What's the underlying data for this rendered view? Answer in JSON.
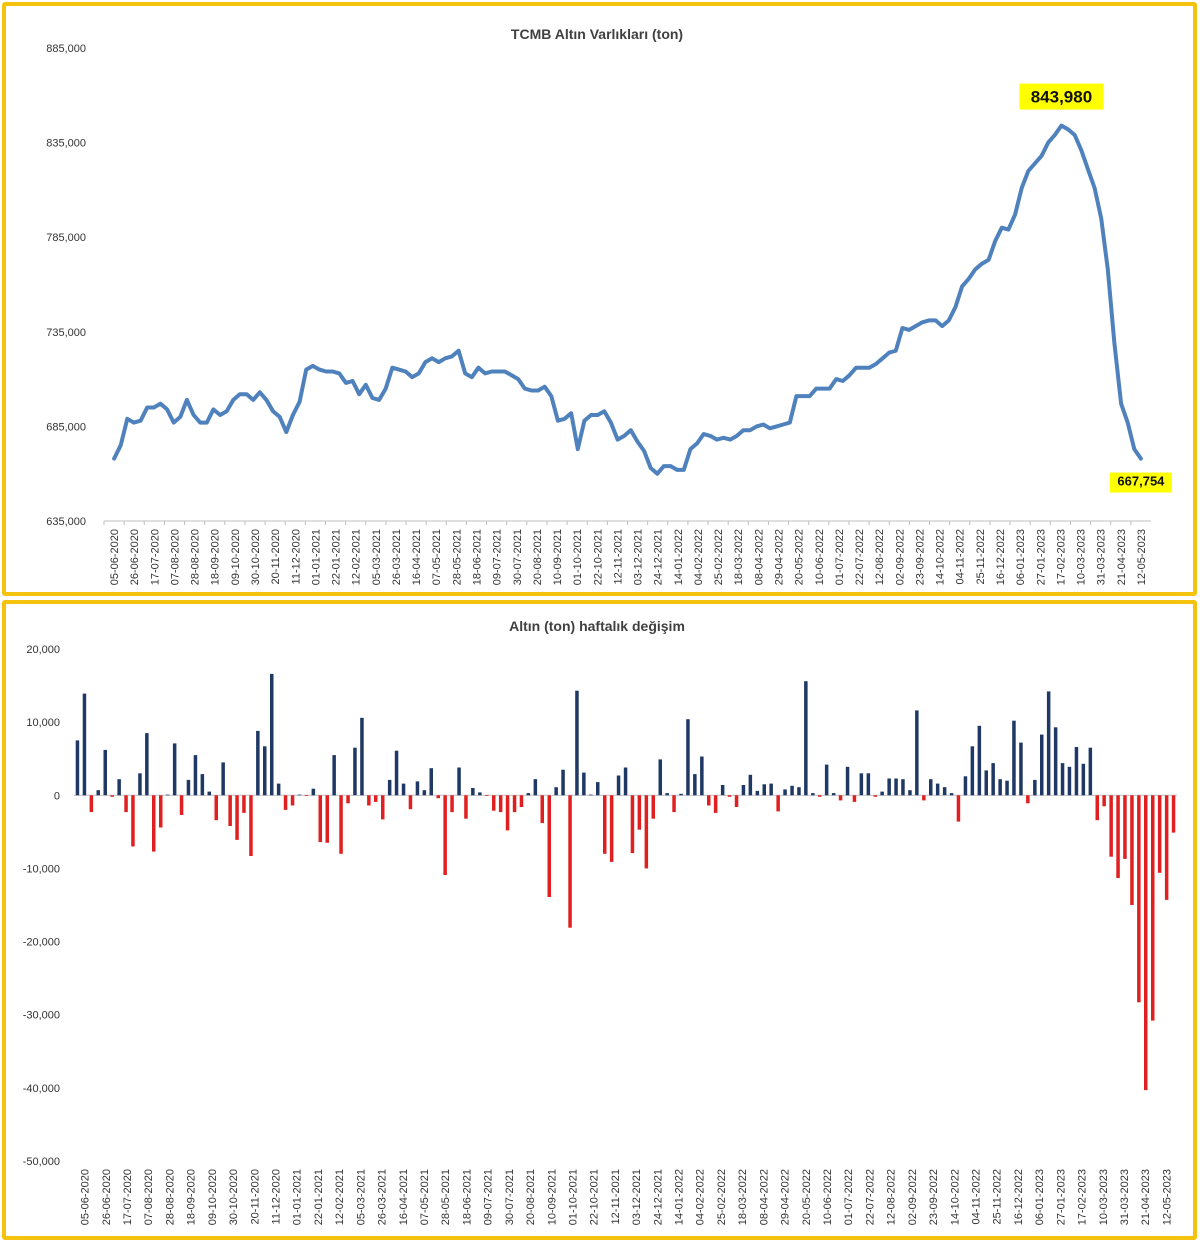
{
  "colors": {
    "frame": "#F5C20D",
    "line": "#4F81BD",
    "bar_positive": "#1F3864",
    "bar_negative": "#E02020",
    "annotation_bg": "#FFFF00",
    "grid": "#D9D9D9"
  },
  "chart_data": [
    {
      "type": "line",
      "title": "TCMB Altın Varlıkları (ton)",
      "xlabel": "",
      "ylabel": "",
      "ylim": [
        635000,
        885000
      ],
      "yticks": [
        635000,
        685000,
        735000,
        785000,
        835000,
        885000
      ],
      "ytick_labels": [
        "635,000",
        "685,000",
        "735,000",
        "785,000",
        "835,000",
        "885,000"
      ],
      "xtick_labels": [
        "05-06-2020",
        "26-06-2020",
        "17-07-2020",
        "07-08-2020",
        "28-08-2020",
        "18-09-2020",
        "09-10-2020",
        "30-10-2020",
        "20-11-2020",
        "11-12-2020",
        "01-01-2021",
        "22-01-2021",
        "12-02-2021",
        "05-03-2021",
        "26-03-2021",
        "16-04-2021",
        "07-05-2021",
        "28-05-2021",
        "18-06-2021",
        "09-07-2021",
        "30-07-2021",
        "20-08-2021",
        "10-09-2021",
        "01-10-2021",
        "22-10-2021",
        "12-11-2021",
        "03-12-2021",
        "24-12-2021",
        "14-01-2022",
        "04-02-2022",
        "25-02-2022",
        "18-03-2022",
        "08-04-2022",
        "29-04-2022",
        "20-05-2022",
        "10-06-2022",
        "01-07-2022",
        "22-07-2022",
        "12-08-2022",
        "02-09-2022",
        "23-09-2022",
        "14-10-2022",
        "04-11-2022",
        "25-11-2022",
        "16-12-2022",
        "06-01-2023",
        "27-01-2023",
        "17-02-2023",
        "10-03-2023",
        "31-03-2023",
        "21-04-2023",
        "12-05-2023"
      ],
      "series": [
        {
          "values": [
            668000,
            675000,
            689000,
            687000,
            688000,
            695000,
            695000,
            697000,
            694000,
            687000,
            690000,
            699000,
            691000,
            687000,
            687000,
            694000,
            691000,
            693000,
            699000,
            702000,
            702000,
            699000,
            703000,
            699000,
            693000,
            690000,
            682000,
            691000,
            698000,
            715000,
            717000,
            715000,
            714000,
            714000,
            713000,
            708000,
            709000,
            702000,
            707000,
            700000,
            699000,
            705000,
            716000,
            715000,
            714000,
            711000,
            713000,
            719000,
            721000,
            719000,
            721000,
            722000,
            725000,
            713000,
            711000,
            716000,
            713000,
            714000,
            714000,
            714000,
            712000,
            710000,
            705000,
            704000,
            704000,
            706000,
            701000,
            688000,
            689000,
            692000,
            673000,
            688000,
            691000,
            691000,
            693000,
            687000,
            678000,
            680000,
            683000,
            677000,
            672000,
            663000,
            660000,
            664000,
            664000,
            662000,
            662000,
            673000,
            676000,
            681000,
            680000,
            678000,
            679000,
            678000,
            680000,
            683000,
            683000,
            685000,
            686000,
            684000,
            685000,
            686000,
            687000,
            701000,
            701000,
            701000,
            705000,
            705000,
            705000,
            710000,
            709000,
            712000,
            716000,
            716000,
            716000,
            718000,
            721000,
            724000,
            725000,
            737000,
            736000,
            738000,
            740000,
            741000,
            741000,
            738000,
            741000,
            748000,
            759000,
            763000,
            768000,
            771000,
            773000,
            783000,
            790000,
            789000,
            797000,
            811000,
            820000,
            824000,
            828000,
            835000,
            839000,
            844000,
            842000,
            839000,
            831000,
            821000,
            811000,
            795000,
            768000,
            729000,
            697000,
            687000,
            673000,
            668000
          ]
        }
      ],
      "annotations": [
        {
          "label": "843,980",
          "point": "peak"
        },
        {
          "label": "667,754",
          "point": "last"
        }
      ]
    },
    {
      "type": "bar",
      "title": "Altın (ton) haftalık değişim",
      "xlabel": "",
      "ylabel": "",
      "ylim": [
        -50000,
        20000
      ],
      "yticks": [
        -50000,
        -40000,
        -30000,
        -20000,
        -10000,
        0,
        10000,
        20000
      ],
      "ytick_labels": [
        "-50,000",
        "-40,000",
        "-30,000",
        "-20,000",
        "-10,000",
        "0",
        "10,000",
        "20,000"
      ],
      "xtick_labels": [
        "05-06-2020",
        "26-06-2020",
        "17-07-2020",
        "07-08-2020",
        "28-08-2020",
        "18-09-2020",
        "09-10-2020",
        "30-10-2020",
        "20-11-2020",
        "11-12-2020",
        "01-01-2021",
        "22-01-2021",
        "12-02-2021",
        "05-03-2021",
        "26-03-2021",
        "16-04-2021",
        "07-05-2021",
        "28-05-2021",
        "18-06-2021",
        "09-07-2021",
        "30-07-2021",
        "20-08-2021",
        "10-09-2021",
        "01-10-2021",
        "22-10-2021",
        "12-11-2021",
        "03-12-2021",
        "24-12-2021",
        "14-01-2022",
        "04-02-2022",
        "25-02-2022",
        "18-03-2022",
        "08-04-2022",
        "29-04-2022",
        "20-05-2022",
        "10-06-2022",
        "01-07-2022",
        "22-07-2022",
        "12-08-2022",
        "02-09-2022",
        "23-09-2022",
        "14-10-2022",
        "04-11-2022",
        "25-11-2022",
        "16-12-2022",
        "06-01-2023",
        "27-01-2023",
        "17-02-2023",
        "10-03-2023",
        "31-03-2023",
        "21-04-2023",
        "12-05-2023"
      ],
      "values": [
        7500,
        13900,
        -2300,
        700,
        6200,
        -200,
        2200,
        -2300,
        -7000,
        3000,
        8500,
        -7700,
        -4400,
        100,
        7100,
        -2700,
        2100,
        5500,
        2900,
        500,
        -3400,
        4500,
        -4200,
        -6100,
        -2400,
        -8300,
        8800,
        6700,
        16600,
        1600,
        -2000,
        -1400,
        100,
        -100,
        900,
        -6400,
        -6500,
        5500,
        -8000,
        -1100,
        6500,
        10600,
        -1400,
        -900,
        -3300,
        2100,
        6100,
        1600,
        -1900,
        1900,
        700,
        3700,
        -400,
        -10900,
        -2300,
        3800,
        -3200,
        1000,
        400,
        -100,
        -2100,
        -2300,
        -4800,
        -2300,
        -1600,
        300,
        2200,
        -3800,
        -13900,
        1100,
        3500,
        -18100,
        14300,
        3100,
        100,
        1800,
        -8000,
        -9100,
        2700,
        3800,
        -7900,
        -4700,
        -10000,
        -3200,
        4900,
        300,
        -2300,
        200,
        10400,
        2900,
        5300,
        -1400,
        -2400,
        1400,
        -200,
        -1600,
        1400,
        2800,
        600,
        1500,
        1600,
        -2200,
        800,
        1300,
        1100,
        15600,
        300,
        -200,
        4200,
        300,
        -700,
        3900,
        -900,
        3000,
        3000,
        -200,
        500,
        2300,
        2300,
        2200,
        700,
        11600,
        -700,
        2200,
        1600,
        1100,
        300,
        -3600,
        2600,
        6700,
        9500,
        3400,
        4400,
        2200,
        2000,
        10200,
        7200,
        -1100,
        2100,
        8300,
        14200,
        9300,
        4400,
        3900,
        6600,
        4300,
        6500,
        -3400,
        -1500,
        -8400,
        -11300,
        -8700,
        -15000,
        -28300,
        -40300,
        -30800,
        -10600,
        -14300,
        -5100
      ]
    }
  ]
}
